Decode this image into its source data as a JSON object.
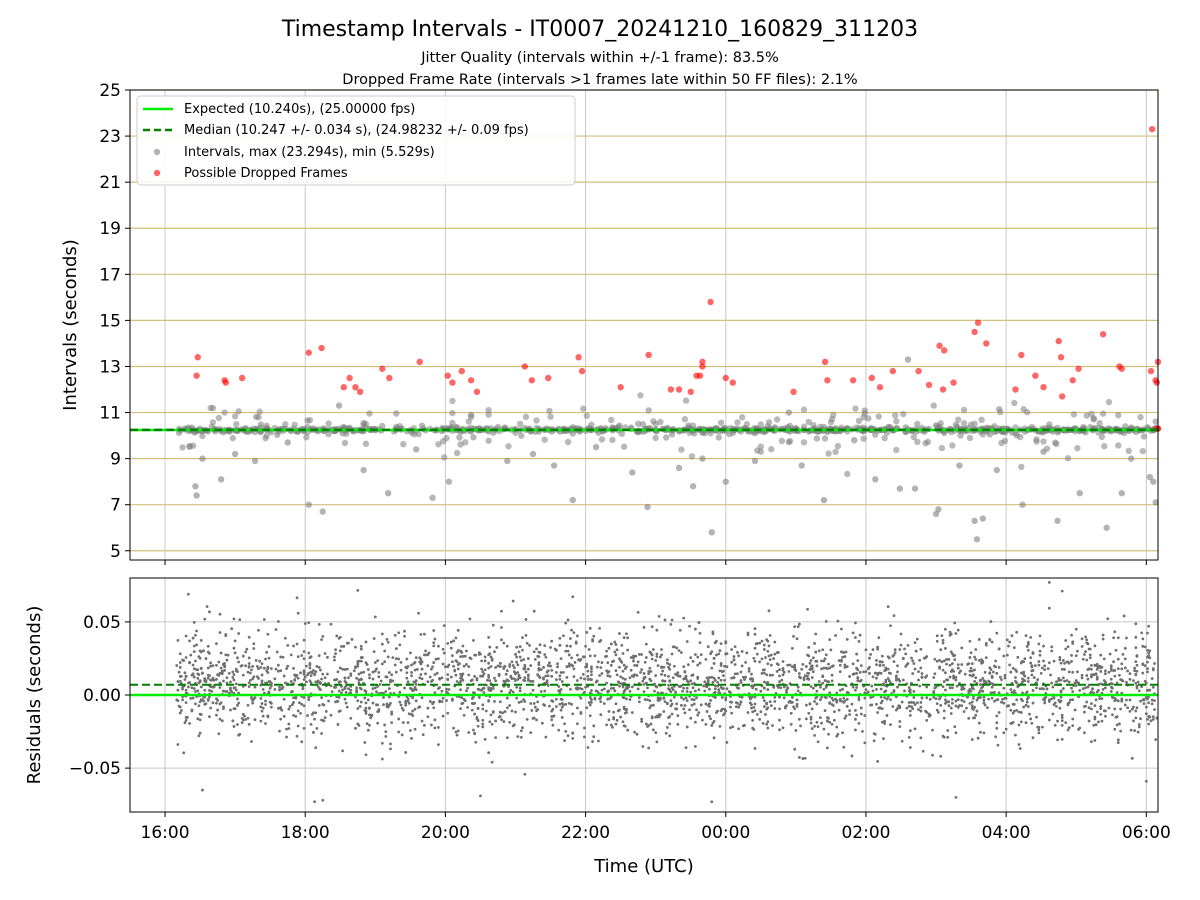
{
  "chart_data": [
    {
      "type": "scatter",
      "title": "Timestamp Intervals - IT0007_20241210_160829_311203",
      "subtitle_lines": [
        "Jitter Quality (intervals within +/-1 frame): 83.5%",
        "Dropped Frame Rate (intervals >1 frames late within 50 FF files): 2.1%"
      ],
      "xlabel": "",
      "ylabel": "Intervals (seconds)",
      "xlim": [
        "2024-12-10 15:30",
        "2024-12-11 06:10"
      ],
      "ylim": [
        4.6,
        25
      ],
      "yticks": [
        5,
        7,
        9,
        11,
        13,
        15,
        17,
        19,
        21,
        23,
        25
      ],
      "grid": true,
      "legend_position": "top-left",
      "expected": 10.24,
      "median": 10.247,
      "legend": [
        {
          "label": "Expected (10.240s), (25.00000 fps)",
          "style": "solid-line",
          "color": "#00ee00"
        },
        {
          "label": "Median (10.247 +/- 0.034 s), (24.98232 +/- 0.09 fps)",
          "style": "dashed-line",
          "color": "#008000"
        },
        {
          "label": "Intervals, max (23.294s), min (5.529s)",
          "style": "marker",
          "color": "#808080"
        },
        {
          "label": "Possible Dropped Frames",
          "style": "marker",
          "color": "#ff0000"
        }
      ],
      "series": [
        {
          "name": "Intervals, max (23.294s), min (5.529s)",
          "color": "#808080",
          "points": [
            {
              "t": "16:27",
              "y": 7.4
            },
            {
              "t": "16:26",
              "y": 7.8
            },
            {
              "t": "16:32",
              "y": 9.0
            },
            {
              "t": "16:48",
              "y": 8.1
            },
            {
              "t": "17:00",
              "y": 9.2
            },
            {
              "t": "17:17",
              "y": 8.9
            },
            {
              "t": "17:45",
              "y": 9.7
            },
            {
              "t": "18:03",
              "y": 7.0
            },
            {
              "t": "18:15",
              "y": 6.7
            },
            {
              "t": "18:29",
              "y": 11.3
            },
            {
              "t": "18:50",
              "y": 8.5
            },
            {
              "t": "19:11",
              "y": 7.5
            },
            {
              "t": "19:35",
              "y": 9.4
            },
            {
              "t": "19:49",
              "y": 7.3
            },
            {
              "t": "20:03",
              "y": 8.0
            },
            {
              "t": "20:22",
              "y": 10.9
            },
            {
              "t": "20:53",
              "y": 8.9
            },
            {
              "t": "21:15",
              "y": 9.2
            },
            {
              "t": "21:33",
              "y": 8.7
            },
            {
              "t": "21:49",
              "y": 7.2
            },
            {
              "t": "22:09",
              "y": 9.5
            },
            {
              "t": "22:40",
              "y": 8.4
            },
            {
              "t": "22:53",
              "y": 6.9
            },
            {
              "t": "23:20",
              "y": 8.6
            },
            {
              "t": "23:32",
              "y": 7.8
            },
            {
              "t": "23:40",
              "y": 9.0
            },
            {
              "t": "23:48",
              "y": 5.8
            },
            {
              "t": "00:00",
              "y": 8.0
            },
            {
              "t": "00:25",
              "y": 8.9
            },
            {
              "t": "00:54",
              "y": 11.0
            },
            {
              "t": "01:05",
              "y": 8.7
            },
            {
              "t": "01:24",
              "y": 7.2
            },
            {
              "t": "01:50",
              "y": 9.8
            },
            {
              "t": "02:08",
              "y": 8.1
            },
            {
              "t": "02:29",
              "y": 7.7
            },
            {
              "t": "02:36",
              "y": 13.3
            },
            {
              "t": "02:42",
              "y": 7.7
            },
            {
              "t": "03:00",
              "y": 6.6
            },
            {
              "t": "03:02",
              "y": 6.8
            },
            {
              "t": "03:20",
              "y": 8.7
            },
            {
              "t": "03:33",
              "y": 6.3
            },
            {
              "t": "03:35",
              "y": 5.5
            },
            {
              "t": "03:40",
              "y": 6.4
            },
            {
              "t": "03:52",
              "y": 8.5
            },
            {
              "t": "04:14",
              "y": 7.0
            },
            {
              "t": "04:32",
              "y": 9.3
            },
            {
              "t": "04:44",
              "y": 6.3
            },
            {
              "t": "05:03",
              "y": 7.5
            },
            {
              "t": "05:26",
              "y": 6.0
            },
            {
              "t": "05:39",
              "y": 7.5
            },
            {
              "t": "05:47",
              "y": 9.0
            },
            {
              "t": "06:03",
              "y": 8.2
            },
            {
              "t": "06:06",
              "y": 8.0
            },
            {
              "t": "06:08",
              "y": 7.1
            }
          ]
        },
        {
          "name": "Possible Dropped Frames",
          "color": "#ff0000",
          "points": [
            {
              "t": "16:28",
              "y": 13.4
            },
            {
              "t": "16:27",
              "y": 12.6
            },
            {
              "t": "16:51",
              "y": 12.4
            },
            {
              "t": "16:52",
              "y": 12.3
            },
            {
              "t": "17:06",
              "y": 12.5
            },
            {
              "t": "18:03",
              "y": 13.6
            },
            {
              "t": "18:14",
              "y": 13.8
            },
            {
              "t": "18:33",
              "y": 12.1
            },
            {
              "t": "18:38",
              "y": 12.5
            },
            {
              "t": "18:43",
              "y": 12.1
            },
            {
              "t": "18:47",
              "y": 11.9
            },
            {
              "t": "19:06",
              "y": 12.9
            },
            {
              "t": "19:12",
              "y": 12.5
            },
            {
              "t": "19:38",
              "y": 13.2
            },
            {
              "t": "20:02",
              "y": 12.6
            },
            {
              "t": "20:06",
              "y": 12.3
            },
            {
              "t": "20:14",
              "y": 12.8
            },
            {
              "t": "20:22",
              "y": 12.4
            },
            {
              "t": "20:27",
              "y": 11.9
            },
            {
              "t": "21:08",
              "y": 13.0
            },
            {
              "t": "21:14",
              "y": 12.4
            },
            {
              "t": "21:28",
              "y": 12.5
            },
            {
              "t": "21:54",
              "y": 13.4
            },
            {
              "t": "21:57",
              "y": 12.8
            },
            {
              "t": "22:30",
              "y": 12.1
            },
            {
              "t": "22:54",
              "y": 13.5
            },
            {
              "t": "23:13",
              "y": 12.0
            },
            {
              "t": "23:20",
              "y": 12.0
            },
            {
              "t": "23:30",
              "y": 11.9
            },
            {
              "t": "23:35",
              "y": 12.6
            },
            {
              "t": "23:40",
              "y": 13.2
            },
            {
              "t": "23:40",
              "y": 13.0
            },
            {
              "t": "23:38",
              "y": 12.6
            },
            {
              "t": "23:47",
              "y": 15.8
            },
            {
              "t": "00:00",
              "y": 12.5
            },
            {
              "t": "00:06",
              "y": 12.3
            },
            {
              "t": "00:58",
              "y": 11.9
            },
            {
              "t": "01:25",
              "y": 13.2
            },
            {
              "t": "01:27",
              "y": 12.4
            },
            {
              "t": "01:49",
              "y": 12.4
            },
            {
              "t": "02:05",
              "y": 12.5
            },
            {
              "t": "02:12",
              "y": 12.1
            },
            {
              "t": "02:23",
              "y": 12.8
            },
            {
              "t": "02:45",
              "y": 12.8
            },
            {
              "t": "02:54",
              "y": 12.2
            },
            {
              "t": "03:03",
              "y": 13.9
            },
            {
              "t": "03:07",
              "y": 13.7
            },
            {
              "t": "03:06",
              "y": 12.0
            },
            {
              "t": "03:15",
              "y": 12.3
            },
            {
              "t": "03:33",
              "y": 14.5
            },
            {
              "t": "03:36",
              "y": 14.9
            },
            {
              "t": "03:43",
              "y": 14.0
            },
            {
              "t": "04:08",
              "y": 12.0
            },
            {
              "t": "04:13",
              "y": 13.5
            },
            {
              "t": "04:25",
              "y": 12.6
            },
            {
              "t": "04:32",
              "y": 12.1
            },
            {
              "t": "04:45",
              "y": 14.1
            },
            {
              "t": "04:47",
              "y": 13.4
            },
            {
              "t": "04:48",
              "y": 11.7
            },
            {
              "t": "04:57",
              "y": 12.4
            },
            {
              "t": "05:02",
              "y": 12.9
            },
            {
              "t": "05:23",
              "y": 14.4
            },
            {
              "t": "05:37",
              "y": 13.0
            },
            {
              "t": "05:39",
              "y": 12.9
            },
            {
              "t": "06:04",
              "y": 12.8
            },
            {
              "t": "06:05",
              "y": 23.3
            },
            {
              "t": "06:08",
              "y": 12.4
            },
            {
              "t": "06:09",
              "y": 12.3
            },
            {
              "t": "06:10",
              "y": 13.2
            },
            {
              "t": "06:09",
              "y": 10.3
            },
            {
              "t": "06:10",
              "y": 10.3
            }
          ]
        }
      ],
      "bulk_intervals_note_t_range": [
        "16:10",
        "06:10"
      ]
    },
    {
      "type": "scatter",
      "title": "",
      "xlabel": "Time (UTC)",
      "ylabel": "Residuals (seconds)",
      "xlim": [
        "2024-12-10 15:30",
        "2024-12-11 06:10"
      ],
      "ylim": [
        -0.08,
        0.08
      ],
      "yticks": [
        -0.05,
        0.0,
        0.05
      ],
      "ytick_labels": [
        "−0.05",
        "0.00",
        "0.05"
      ],
      "xticks": [
        "16:00",
        "18:00",
        "20:00",
        "22:00",
        "00:00",
        "02:00",
        "04:00",
        "06:00"
      ],
      "grid": true,
      "expected_line": 0.0,
      "median_line": 0.007,
      "residuals_color": "#707070",
      "residuals_spread_std": 0.018,
      "residuals_range": [
        -0.075,
        0.077
      ],
      "outliers": [
        {
          "t": "16:20",
          "y": 0.069
        },
        {
          "t": "16:32",
          "y": -0.065
        },
        {
          "t": "18:08",
          "y": -0.073
        },
        {
          "t": "18:15",
          "y": -0.072
        },
        {
          "t": "20:30",
          "y": -0.069
        },
        {
          "t": "23:48",
          "y": -0.073
        },
        {
          "t": "03:17",
          "y": -0.07
        },
        {
          "t": "04:37",
          "y": 0.077
        },
        {
          "t": "04:48",
          "y": 0.071
        },
        {
          "t": "06:00",
          "y": -0.059
        }
      ]
    }
  ],
  "colors": {
    "expected": "#00ee00",
    "median": "#008000",
    "gridline": "#d4bf7a",
    "vgrid": "#c8c8c8",
    "intervals": "#808080",
    "dropped": "#ff0000"
  }
}
